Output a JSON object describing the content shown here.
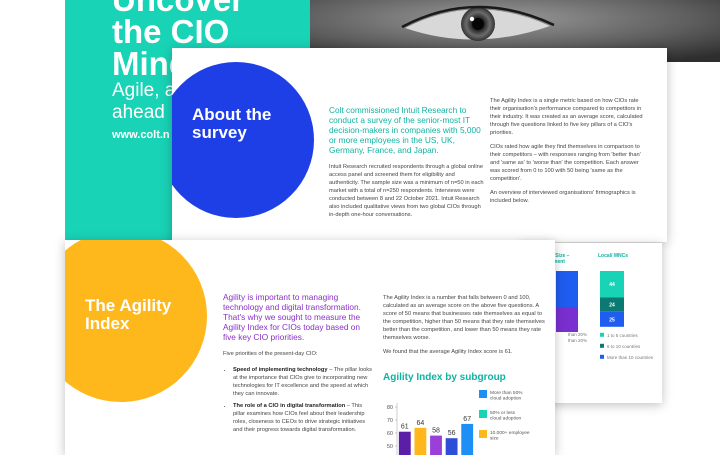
{
  "cover": {
    "headline": [
      "Uncover",
      "the CIO",
      "Mindset"
    ],
    "tagline": [
      "Agile, a",
      "ahead"
    ],
    "url": "www.colt.n"
  },
  "about": {
    "title": "About the survey",
    "lead": "Colt commissioned Intuit Research to conduct a survey of the senior-most IT decision-makers in companies with 5,000 or more employees in the US, UK, Germany, France, and Japan.",
    "body": "Intuit Research recruited respondents through a global online access panel and screened them for eligibility and authenticity. The sample size was a minimum of n=50 in each market with a total of n=250 respondents. Interviews were conducted between 8 and 22 October 2021. Intuit Research also included qualitative views from two global CIOs through in-depth one-hour conversations.",
    "side": [
      "The Agility Index is a single metric based on how CIOs rate their organisation's performance compared to competitors in their industry. It was created as an average score, calculated through five questions linked to five key pillars of a CIO's priorities.",
      "CIOs rated how agile they find themselves in comparison to their competitors – with responses ranging from 'better than' and 'same as' to 'worse than' the competition. Each answer was scored from 0 to 100 with 50 being 'same as the competition'.",
      "An overview of interviewed organisations' firmographics is included below."
    ]
  },
  "back_page": {
    "headers": [
      "ge Size –",
      "rnment",
      "Local/ MNCs"
    ],
    "left_notes": [
      "than 20%",
      "than 20%"
    ],
    "segments": [
      {
        "value": 44,
        "color": "#19d3b6"
      },
      {
        "value": 24,
        "color": "#0b7a72"
      },
      {
        "value": 25,
        "color": "#1f5cf0"
      }
    ],
    "legend": [
      "1 to 5 countries",
      "6 to 10 countries",
      "More than 10 countries"
    ]
  },
  "agility": {
    "title": "The Agility Index",
    "lead": "Agility is important to managing technology and digital transformation. That's why we sought to measure the Agility Index for CIOs today based on five key CIO priorities.",
    "intro": "Five priorities of the present-day CIO:",
    "bullets": [
      {
        "heading": "Speed of implementing technology",
        "text": " – The pillar looks at the importance that CIOs give to incorporating new technologies for IT excellence and the speed at which they can innovate."
      },
      {
        "heading": "The role of a CIO in digital transformation",
        "text": " – This pillar examines how CIOs feel about their leadership roles, closeness to CEOs to drive strategic initiatives and their progress towards digital transformation."
      }
    ],
    "side": [
      "The Agility Index is a number that falls between 0 and 100, calculated as an average score on the above five questions. A score of 50 means that businesses rate themselves as equal to the competition, higher than 50 means that they rate themselves better than the competition, and lower than 50 means they rate themselves worse.",
      "We found that the average Agility Index score is 61."
    ],
    "chart": {
      "type": "bar",
      "title": "Agility Index by subgroup",
      "values": [
        61,
        64,
        58,
        56,
        67
      ],
      "colors": [
        "#5a1fa6",
        "#ffb81c",
        "#9a3fd8",
        "#2d4fd8",
        "#1e8ff5"
      ],
      "ylim": [
        50,
        80
      ],
      "yticks": [
        50,
        60,
        70,
        80
      ],
      "legend": [
        {
          "label": "More than 50% cloud adoption",
          "color": "#1e8ff5"
        },
        {
          "label": "50% or less cloud adoption",
          "color": "#19d3b6"
        },
        {
          "label": "10,000+ employee size",
          "color": "#ffb81c"
        }
      ]
    }
  }
}
